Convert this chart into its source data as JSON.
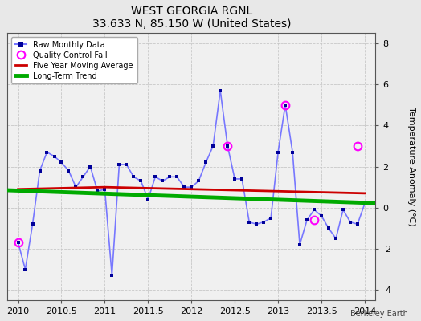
{
  "title": "WEST GEORGIA RGNL",
  "subtitle": "33.633 N, 85.150 W (United States)",
  "ylabel": "Temperature Anomaly (°C)",
  "footer": "Berkeley Earth",
  "xlim": [
    2009.875,
    2014.125
  ],
  "ylim": [
    -4.5,
    8.5
  ],
  "yticks": [
    -4,
    -2,
    0,
    2,
    4,
    6,
    8
  ],
  "xticks": [
    2010,
    2010.5,
    2011,
    2011.5,
    2012,
    2012.5,
    2013,
    2013.5,
    2014
  ],
  "xtick_labels": [
    "2010",
    "2010.5",
    "2011",
    "2011.5",
    "2012",
    "2012.5",
    "2013",
    "2013.5",
    "2014"
  ],
  "bg_color": "#e8e8e8",
  "plot_bg_color": "#f0f0f0",
  "raw_x": [
    2010.0,
    2010.083,
    2010.167,
    2010.25,
    2010.333,
    2010.417,
    2010.5,
    2010.583,
    2010.667,
    2010.75,
    2010.833,
    2010.917,
    2011.0,
    2011.083,
    2011.167,
    2011.25,
    2011.333,
    2011.417,
    2011.5,
    2011.583,
    2011.667,
    2011.75,
    2011.833,
    2011.917,
    2012.0,
    2012.083,
    2012.167,
    2012.25,
    2012.333,
    2012.417,
    2012.5,
    2012.583,
    2012.667,
    2012.75,
    2012.833,
    2012.917,
    2013.0,
    2013.083,
    2013.167,
    2013.25,
    2013.333,
    2013.417,
    2013.5,
    2013.583,
    2013.667,
    2013.75,
    2013.833,
    2013.917,
    2014.0
  ],
  "raw_y": [
    -1.7,
    -3.0,
    -0.8,
    1.8,
    2.7,
    2.5,
    2.2,
    1.8,
    1.0,
    1.5,
    2.0,
    0.8,
    0.9,
    -3.3,
    2.1,
    2.1,
    1.5,
    1.3,
    0.4,
    1.5,
    1.3,
    1.5,
    1.5,
    1.0,
    1.0,
    1.3,
    2.2,
    3.0,
    5.7,
    3.0,
    1.4,
    1.4,
    -0.7,
    -0.8,
    -0.7,
    -0.5,
    2.7,
    5.0,
    2.7,
    -1.8,
    -0.6,
    -0.1,
    -0.4,
    -1.0,
    -1.5,
    -0.1,
    -0.7,
    -0.8,
    0.2
  ],
  "qc_x": [
    2010.0,
    2012.417,
    2013.083,
    2013.417,
    2013.917
  ],
  "qc_y": [
    -1.7,
    3.0,
    5.0,
    -0.6,
    3.0
  ],
  "mavg_x": [
    2010.0,
    2010.5,
    2011.0,
    2011.5,
    2012.0,
    2012.5,
    2013.0,
    2013.5,
    2014.0
  ],
  "mavg_y": [
    0.9,
    0.95,
    1.0,
    0.95,
    0.9,
    0.85,
    0.8,
    0.75,
    0.7
  ],
  "trend_x": [
    2009.875,
    2014.125
  ],
  "trend_y": [
    0.85,
    0.22
  ],
  "raw_line_color": "#7777ff",
  "raw_dot_color": "#000099",
  "qc_color": "#ff00ff",
  "mavg_color": "#cc0000",
  "trend_color": "#00aa00",
  "trend_linewidth": 3.5,
  "mavg_linewidth": 2.0,
  "raw_linewidth": 1.2,
  "marker_size": 3.5
}
